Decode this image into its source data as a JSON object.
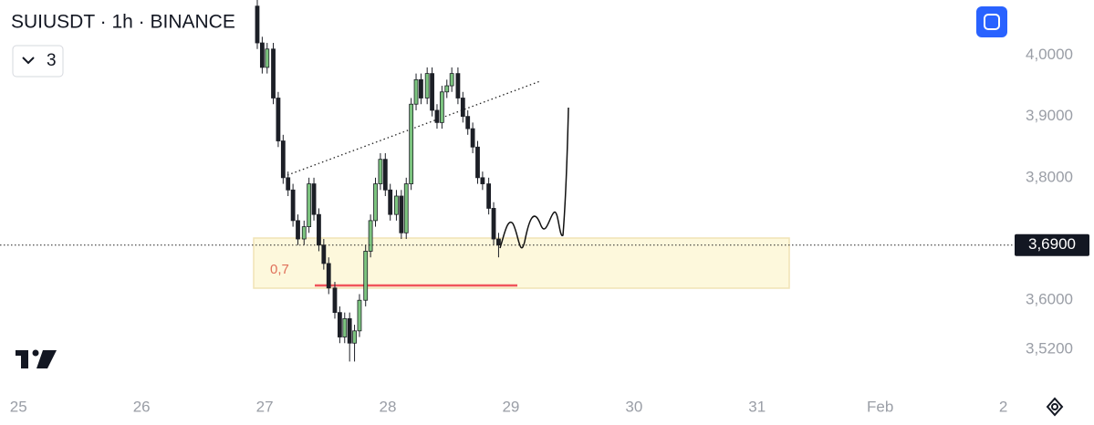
{
  "chart_data": {
    "type": "candlestick",
    "title": "SUIUSDT · 1h · BINANCE",
    "indicator_count": "3",
    "fib_label": "0,7",
    "up_color": "#7cc47f",
    "down_color": "#1c1f26",
    "outline_color": "#1c1f26",
    "xlim": [
      24.85,
      33.04
    ],
    "ylim": [
      3.45,
      4.09
    ],
    "xticks": [
      25,
      26,
      27,
      28,
      29,
      30,
      31,
      {
        "value": 32,
        "label": "Feb"
      },
      {
        "value": 33,
        "label": "2"
      }
    ],
    "yticks": [
      {
        "value": 4,
        "label": "4,0000"
      },
      {
        "value": 3.9,
        "label": "3,9000"
      },
      {
        "value": 3.8,
        "label": "3,8000"
      },
      {
        "value": 3.6,
        "label": "3,6000"
      },
      {
        "value": 3.52,
        "label": "3,5200"
      }
    ],
    "current_price": {
      "value": 3.69,
      "label": "3,6900"
    },
    "x": [
      26.94,
      26.98,
      27.02,
      27.07,
      27.11,
      27.15,
      27.19,
      27.23,
      27.27,
      27.32,
      27.36,
      27.4,
      27.44,
      27.48,
      27.52,
      27.57,
      27.61,
      27.65,
      27.69,
      27.73,
      27.77,
      27.82,
      27.86,
      27.9,
      27.94,
      27.98,
      28.02,
      28.07,
      28.11,
      28.15,
      28.19,
      28.23,
      28.27,
      28.32,
      28.36,
      28.4,
      28.44,
      28.48,
      28.52,
      28.57,
      28.61,
      28.65,
      28.69,
      28.73,
      28.77,
      28.82,
      28.86,
      28.9
    ],
    "open": [
      4.08,
      4.02,
      3.98,
      4.01,
      3.93,
      3.86,
      3.8,
      3.78,
      3.73,
      3.7,
      3.72,
      3.79,
      3.74,
      3.69,
      3.66,
      3.62,
      3.58,
      3.54,
      3.57,
      3.53,
      3.55,
      3.6,
      3.68,
      3.73,
      3.79,
      3.83,
      3.78,
      3.74,
      3.77,
      3.71,
      3.79,
      3.92,
      3.96,
      3.93,
      3.97,
      3.91,
      3.89,
      3.94,
      3.95,
      3.97,
      3.93,
      3.9,
      3.88,
      3.85,
      3.8,
      3.79,
      3.75,
      3.7
    ],
    "high": [
      4.09,
      4.03,
      4.02,
      4.02,
      3.94,
      3.87,
      3.81,
      3.79,
      3.74,
      3.73,
      3.8,
      3.8,
      3.75,
      3.7,
      3.67,
      3.63,
      3.59,
      3.58,
      3.58,
      3.56,
      3.61,
      3.69,
      3.74,
      3.8,
      3.84,
      3.84,
      3.79,
      3.78,
      3.78,
      3.8,
      3.93,
      3.97,
      3.97,
      3.98,
      3.98,
      3.92,
      3.95,
      3.96,
      3.98,
      3.98,
      3.94,
      3.91,
      3.89,
      3.86,
      3.81,
      3.8,
      3.76,
      3.71
    ],
    "low": [
      4.01,
      3.97,
      3.97,
      3.92,
      3.85,
      3.79,
      3.77,
      3.72,
      3.69,
      3.69,
      3.71,
      3.73,
      3.68,
      3.65,
      3.61,
      3.57,
      3.53,
      3.53,
      3.5,
      3.5,
      3.54,
      3.59,
      3.67,
      3.72,
      3.78,
      3.77,
      3.73,
      3.73,
      3.7,
      3.7,
      3.78,
      3.91,
      3.92,
      3.92,
      3.9,
      3.88,
      3.88,
      3.93,
      3.94,
      3.92,
      3.89,
      3.87,
      3.84,
      3.79,
      3.78,
      3.74,
      3.69,
      3.67
    ],
    "close": [
      4.02,
      3.98,
      4.01,
      3.93,
      3.86,
      3.8,
      3.78,
      3.73,
      3.7,
      3.72,
      3.79,
      3.74,
      3.69,
      3.66,
      3.62,
      3.58,
      3.54,
      3.57,
      3.53,
      3.55,
      3.6,
      3.68,
      3.73,
      3.79,
      3.83,
      3.78,
      3.74,
      3.77,
      3.71,
      3.79,
      3.92,
      3.96,
      3.93,
      3.97,
      3.91,
      3.89,
      3.94,
      3.95,
      3.97,
      3.93,
      3.9,
      3.88,
      3.85,
      3.8,
      3.79,
      3.75,
      3.7,
      3.69
    ]
  }
}
